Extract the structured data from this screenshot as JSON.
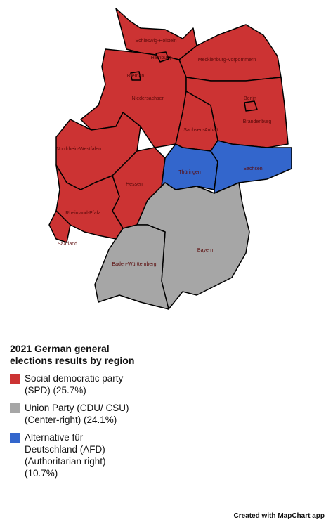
{
  "title": "2021 German general elections results by region",
  "legend": [
    {
      "label": "Social democratic party (SPD) (25.7%)",
      "color": "#cc3333"
    },
    {
      "label": "Union Party (CDU/ CSU) (Center-right) (24.1%)",
      "color": "#a6a6a6"
    },
    {
      "label": "Alternative für Deutschland (AFD) (Authoritarian right) (10.7%)",
      "color": "#3366cc"
    }
  ],
  "regions": [
    {
      "name": "Schleswig-Holstein",
      "color": "#cc3333"
    },
    {
      "name": "Mecklenburg-Vorpommern",
      "color": "#cc3333"
    },
    {
      "name": "Niedersachsen",
      "color": "#cc3333"
    },
    {
      "name": "Brandenburg",
      "color": "#cc3333"
    },
    {
      "name": "Sachsen-Anhalt",
      "color": "#cc3333"
    },
    {
      "name": "Nordrhein-Westfalen",
      "color": "#cc3333"
    },
    {
      "name": "Hessen",
      "color": "#cc3333"
    },
    {
      "name": "Rheinland-Pfalz",
      "color": "#cc3333"
    },
    {
      "name": "Saarland",
      "color": "#cc3333"
    },
    {
      "name": "Thüringen",
      "color": "#3366cc"
    },
    {
      "name": "Sachsen",
      "color": "#3366cc"
    },
    {
      "name": "Bayern",
      "color": "#a6a6a6"
    },
    {
      "name": "Baden-Württemberg",
      "color": "#a6a6a6"
    },
    {
      "name": "Hamburg",
      "color": "#cc3333"
    },
    {
      "name": "Bremen",
      "color": "#cc3333"
    },
    {
      "name": "Berlin",
      "color": "#cc3333"
    }
  ],
  "footer": "Created with MapChart app"
}
